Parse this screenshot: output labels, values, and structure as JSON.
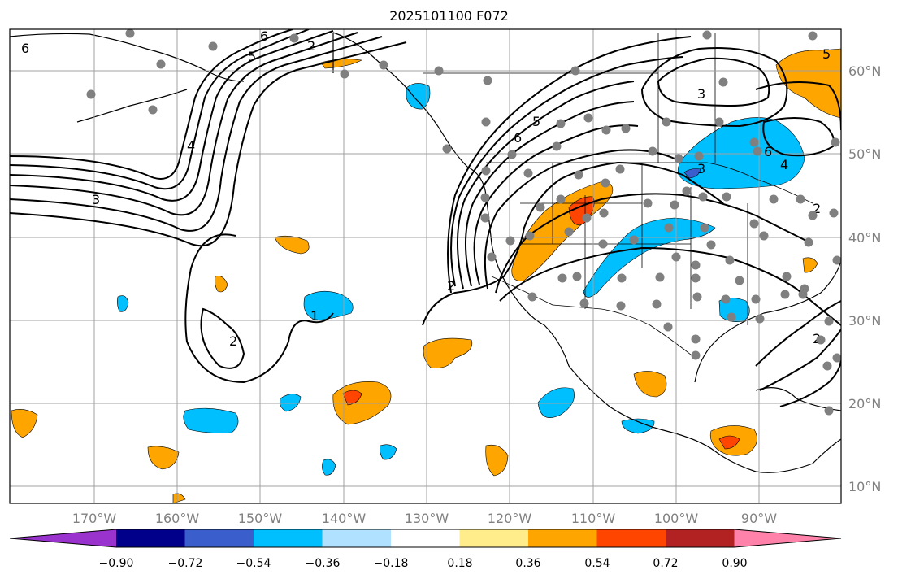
{
  "title": "2025101100 F072",
  "lon_labels": [
    "170°W",
    "160°W",
    "150°W",
    "140°W",
    "130°W",
    "120°W",
    "110°W",
    "100°W",
    "90°W"
  ],
  "lat_labels": [
    "60°N",
    "50°N",
    "40°N",
    "30°N",
    "20°N",
    "10°N"
  ],
  "colorbar": {
    "colors": [
      "#9a32cd",
      "#00008b",
      "#3a5fcd",
      "#00bfff",
      "#b0e2ff",
      "#ffffff",
      "#ffec8b",
      "#ffa500",
      "#ff4500",
      "#b22222",
      "#ff82ab"
    ],
    "tick_labels": [
      "−0.90",
      "−0.72",
      "−0.54",
      "−0.36",
      "−0.18",
      "0.18",
      "0.36",
      "0.54",
      "0.72",
      "0.90"
    ]
  },
  "contour_labels": [
    "6",
    "5",
    "2",
    "6",
    "4",
    "3",
    "2",
    "2",
    "1",
    "3",
    "6",
    "3",
    "4",
    "5",
    "6",
    "5",
    "2",
    "2"
  ],
  "colors": {
    "grid": "#a0a0a0",
    "tick_label": "#808080",
    "station": "#808080",
    "contour": "#000000"
  }
}
